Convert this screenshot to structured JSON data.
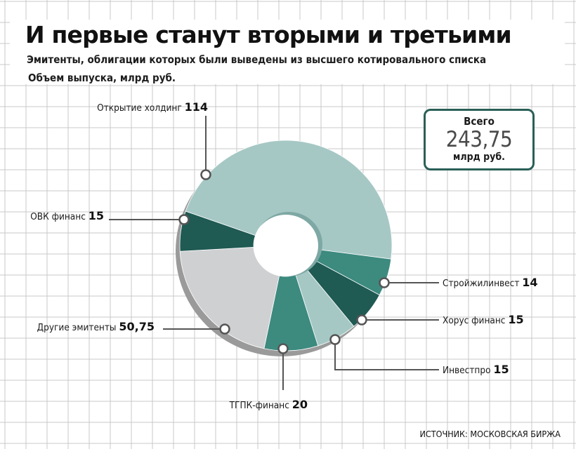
{
  "title": "И первые станут вторыми и третьими",
  "subtitle": "Эмитенты, облигации которых были выведены из высшего котировального списка",
  "unit_label": "Объем выпуска, млрд руб.",
  "total": {
    "label": "Всего",
    "value": "243,75",
    "unit": "млрд руб."
  },
  "source": "ИСТОЧНИК: МОСКОВСКАЯ БИРЖА",
  "colors": {
    "light_teal": "#a6c8c5",
    "mid_teal": "#3d8a7f",
    "dark_teal": "#1f5a53",
    "light_gray": "#cfd0d2",
    "box_border": "#2a5f57",
    "grid": "#c8c8c8"
  },
  "chart_data": {
    "type": "pie",
    "donut": true,
    "unit": "млрд руб.",
    "slices": [
      {
        "name": "Открытие холдинг",
        "value_text": "114",
        "value": 114,
        "color": "#a6c8c5"
      },
      {
        "name": "Стройжилинвест",
        "value_text": "14",
        "value": 14,
        "color": "#3d8a7f"
      },
      {
        "name": "Хорус финанс",
        "value_text": "15",
        "value": 15,
        "color": "#1f5a53"
      },
      {
        "name": "Инвестпро",
        "value_text": "15",
        "value": 15,
        "color": "#a6c8c5"
      },
      {
        "name": "ТГПК-финанс",
        "value_text": "20",
        "value": 20,
        "color": "#3d8a7f"
      },
      {
        "name": "Другие эмитенты",
        "value_text": "50,75",
        "value": 50.75,
        "color": "#cfd0d2"
      },
      {
        "name": "ОВК финанс",
        "value_text": "15",
        "value": 15,
        "color": "#1f5a53"
      }
    ]
  }
}
